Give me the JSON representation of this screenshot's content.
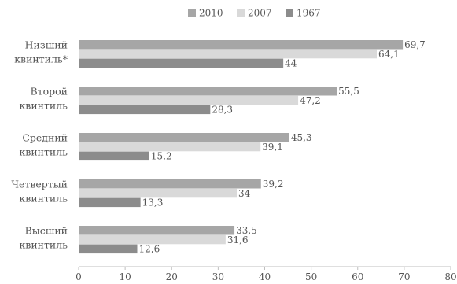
{
  "chart_data": {
    "type": "bar",
    "orientation": "horizontal",
    "categories": [
      [
        "Низший",
        "квинтиль*"
      ],
      [
        "Второй",
        "квинтиль"
      ],
      [
        "Средний",
        "квинтиль"
      ],
      [
        "Четвертый",
        "квинтиль"
      ],
      [
        "Высший",
        "квинтиль"
      ]
    ],
    "series": [
      {
        "name": "2010",
        "color": "#a6a6a6",
        "values": [
          69.7,
          55.5,
          45.3,
          39.2,
          33.5
        ],
        "labels": [
          "69,7",
          "55,5",
          "45,3",
          "39,2",
          "33,5"
        ]
      },
      {
        "name": "2007",
        "color": "#d9d9d9",
        "values": [
          64.1,
          47.2,
          39.1,
          34,
          31.6
        ],
        "labels": [
          "64,1",
          "47,2",
          "39,1",
          "34",
          "31,6"
        ]
      },
      {
        "name": "1967",
        "color": "#8c8c8c",
        "values": [
          44,
          28.3,
          15.2,
          13.3,
          12.6
        ],
        "labels": [
          "44",
          "28,3",
          "15,2",
          "13,3",
          "12,6"
        ]
      }
    ],
    "xlim": [
      0,
      80
    ],
    "xticks": [
      0,
      10,
      20,
      30,
      40,
      50,
      60,
      70,
      80
    ],
    "title": "",
    "xlabel": "",
    "ylabel": "",
    "grid": false,
    "legend": "top"
  }
}
